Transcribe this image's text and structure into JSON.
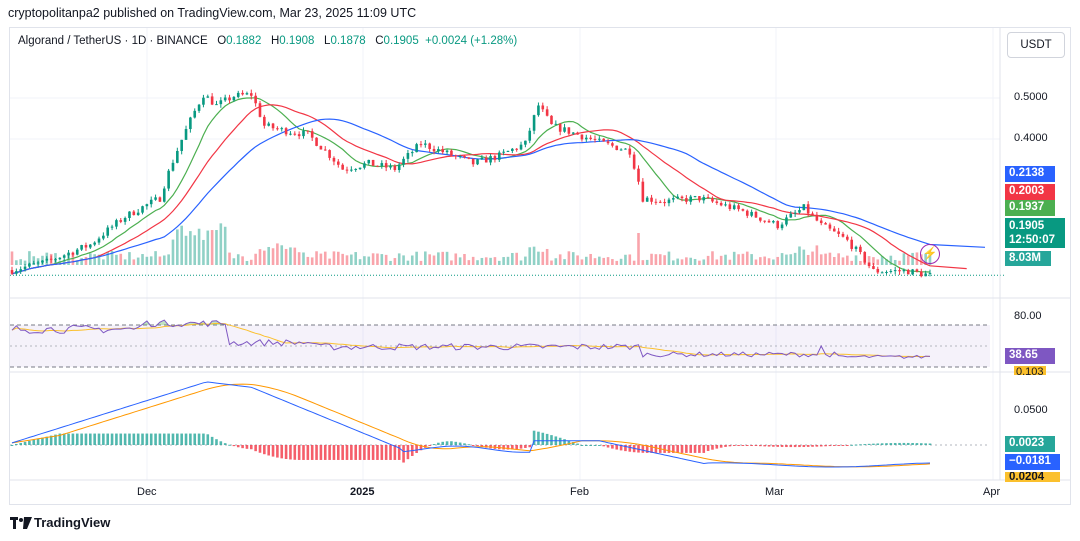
{
  "publisher": "cryptopolitanpa2 published on TradingView.com, Mar 23, 2025 11:09 UTC",
  "legend": {
    "pair": "Algorand / TetherUS · 1D · BINANCE",
    "o_label": "O",
    "o_value": "0.1882",
    "h_label": "H",
    "h_value": "0.1908",
    "l_label": "L",
    "l_value": "0.1878",
    "c_label": "C",
    "c_value": "0.1905",
    "change": "+0.0024 (+1.28%)"
  },
  "currency_button": "USDT",
  "brand": "TradingView",
  "colors": {
    "up": "#089981",
    "down": "#f23645",
    "ma_fast": "#4caf50",
    "ma_mid": "#f23645",
    "ma_slow": "#2962ff",
    "rsi": "#7e57c2",
    "rsi_ma": "#fbc02d",
    "macd": "#2962ff",
    "signal": "#ff9800"
  },
  "price_axis": {
    "ticks": [
      "0.5000",
      "0.4000"
    ],
    "tags": {
      "ma_slow": "0.2138",
      "ma_mid": "0.2003",
      "ma_fast": "0.1937",
      "last_price": "0.1905",
      "countdown": "12:50:07",
      "volume": "8.03M"
    }
  },
  "rsi_axis": {
    "upper": "80.00",
    "value": "38.65",
    "lower": "0.103"
  },
  "macd_axis": {
    "tick": "0.0500",
    "histogram": "0.0023",
    "macd": "−0.0181",
    "signal": "0.0204"
  },
  "time_axis": [
    "Dec",
    "2025",
    "Feb",
    "Mar",
    "Apr"
  ],
  "chart_data": {
    "type": "candlestick",
    "title": "Algorand / TetherUS · 1D · BINANCE",
    "ylim": [
      0.17,
      0.6
    ],
    "keyframes": [
      {
        "i": 0,
        "p": 0.196
      },
      {
        "i": 8,
        "p": 0.205
      },
      {
        "i": 18,
        "p": 0.225
      },
      {
        "i": 26,
        "p": 0.262
      },
      {
        "i": 34,
        "p": 0.29
      },
      {
        "i": 40,
        "p": 0.42
      },
      {
        "i": 44,
        "p": 0.51
      },
      {
        "i": 47,
        "p": 0.48
      },
      {
        "i": 51,
        "p": 0.505
      },
      {
        "i": 55,
        "p": 0.51
      },
      {
        "i": 58,
        "p": 0.43
      },
      {
        "i": 62,
        "p": 0.42
      },
      {
        "i": 68,
        "p": 0.41
      },
      {
        "i": 76,
        "p": 0.34
      },
      {
        "i": 82,
        "p": 0.35
      },
      {
        "i": 88,
        "p": 0.34
      },
      {
        "i": 94,
        "p": 0.39
      },
      {
        "i": 100,
        "p": 0.37
      },
      {
        "i": 106,
        "p": 0.35
      },
      {
        "i": 112,
        "p": 0.365
      },
      {
        "i": 118,
        "p": 0.39
      },
      {
        "i": 121,
        "p": 0.48
      },
      {
        "i": 124,
        "p": 0.43
      },
      {
        "i": 130,
        "p": 0.41
      },
      {
        "i": 136,
        "p": 0.39
      },
      {
        "i": 142,
        "p": 0.375
      },
      {
        "i": 145,
        "p": 0.29
      },
      {
        "i": 150,
        "p": 0.285
      },
      {
        "i": 158,
        "p": 0.29
      },
      {
        "i": 168,
        "p": 0.27
      },
      {
        "i": 176,
        "p": 0.25
      },
      {
        "i": 182,
        "p": 0.275
      },
      {
        "i": 186,
        "p": 0.25
      },
      {
        "i": 192,
        "p": 0.23
      },
      {
        "i": 198,
        "p": 0.195
      },
      {
        "i": 206,
        "p": 0.195
      },
      {
        "i": 211,
        "p": 0.1905
      }
    ]
  }
}
